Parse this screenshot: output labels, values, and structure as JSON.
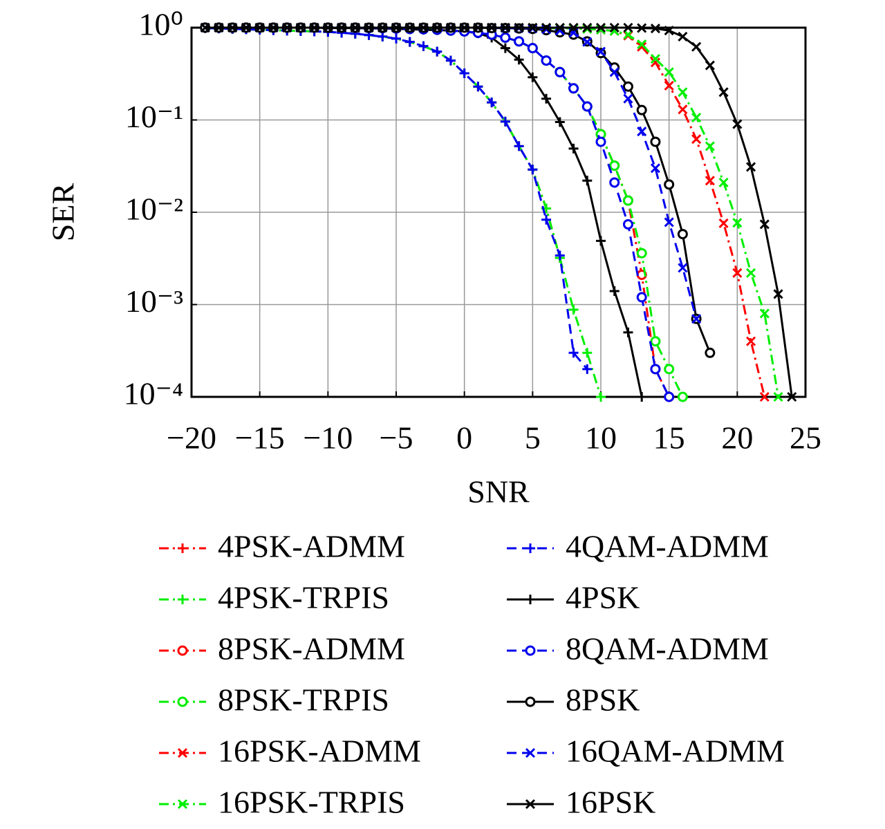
{
  "chart_data": {
    "type": "line",
    "xlabel": "SNR",
    "ylabel": "SER",
    "log_y": true,
    "grid": true,
    "legend_position": "below",
    "legend_columns": 2,
    "xlim": [
      -20,
      25
    ],
    "ylim": [
      0.0001,
      1
    ],
    "xticks": [
      {
        "value": -20,
        "label": "−20"
      },
      {
        "value": -15,
        "label": "−15"
      },
      {
        "value": -10,
        "label": "−10"
      },
      {
        "value": -5,
        "label": "−5"
      },
      0,
      5,
      10,
      15,
      20,
      25
    ],
    "yticks": [
      {
        "value": 1,
        "label": "10⁰"
      },
      {
        "value": 0.1,
        "label": "10⁻¹"
      },
      {
        "value": 0.01,
        "label": "10⁻²"
      },
      {
        "value": 0.001,
        "label": "10⁻³"
      },
      {
        "value": 0.0001,
        "label": "10⁻⁴"
      }
    ],
    "x": [
      -19,
      -18,
      -17,
      -16,
      -15,
      -14,
      -13,
      -12,
      -11,
      -10,
      -9,
      -8,
      -7,
      -6,
      -5,
      -4,
      -3,
      -2,
      -1,
      0,
      1,
      2,
      3,
      4,
      5,
      6,
      7,
      8,
      9,
      10,
      11,
      12,
      13,
      14,
      15,
      16,
      17,
      18,
      19,
      20,
      21,
      22,
      23,
      24
    ],
    "series": [
      {
        "name": "4PSK-ADMM",
        "color": "#ff0000",
        "linestyle": "dashdot",
        "marker": "+",
        "values": [
          0.99,
          0.98,
          0.97,
          0.96,
          0.95,
          0.94,
          0.93,
          0.92,
          0.91,
          0.9,
          0.88,
          0.86,
          0.83,
          0.8,
          0.76,
          0.7,
          0.63,
          0.55,
          0.44,
          0.32,
          0.23,
          0.155,
          0.096,
          0.052,
          0.029,
          0.011,
          0.0032,
          null,
          null,
          null,
          null,
          null,
          null,
          null,
          null,
          null,
          null,
          null,
          null,
          null,
          null,
          null,
          null,
          null
        ]
      },
      {
        "name": "4PSK-TRPIS",
        "color": "#00ee00",
        "linestyle": "dashdot",
        "marker": "+",
        "values": [
          0.99,
          0.98,
          0.97,
          0.96,
          0.95,
          0.94,
          0.93,
          0.92,
          0.91,
          0.9,
          0.88,
          0.86,
          0.83,
          0.8,
          0.76,
          0.7,
          0.63,
          0.55,
          0.44,
          0.32,
          0.23,
          0.155,
          0.096,
          0.052,
          0.029,
          0.011,
          0.0032,
          0.00088,
          0.0003,
          0.0001,
          null,
          null,
          null,
          null,
          null,
          null,
          null,
          null,
          null,
          null,
          null,
          null,
          null,
          null
        ]
      },
      {
        "name": "8PSK-ADMM",
        "color": "#ff0000",
        "linestyle": "dashdot",
        "marker": "o",
        "values": [
          1,
          1,
          1,
          1,
          1,
          1,
          1,
          1,
          1,
          1,
          1,
          1,
          0.99,
          0.99,
          0.98,
          0.97,
          0.96,
          0.95,
          0.93,
          0.91,
          0.88,
          0.84,
          0.78,
          0.71,
          0.6,
          0.44,
          0.33,
          0.22,
          0.14,
          0.07,
          0.032,
          0.0134,
          0.0021,
          0.0002,
          0.0001,
          null,
          null,
          null,
          null,
          null,
          null,
          null,
          null,
          null
        ]
      },
      {
        "name": "8PSK-TRPIS",
        "color": "#00ee00",
        "linestyle": "dashdot",
        "marker": "o",
        "values": [
          1,
          1,
          1,
          1,
          1,
          1,
          1,
          1,
          1,
          1,
          1,
          1,
          0.99,
          0.99,
          0.98,
          0.97,
          0.96,
          0.95,
          0.93,
          0.91,
          0.88,
          0.84,
          0.78,
          0.71,
          0.6,
          0.44,
          0.33,
          0.22,
          0.14,
          0.07,
          0.032,
          0.0134,
          0.0036,
          0.0004,
          0.0002,
          0.0001,
          null,
          null,
          null,
          null,
          null,
          null,
          null,
          null
        ]
      },
      {
        "name": "16PSK-ADMM",
        "color": "#ff0000",
        "linestyle": "dashdot",
        "marker": "x",
        "values": [
          1,
          1,
          1,
          1,
          1,
          1,
          1,
          1,
          1,
          1,
          1,
          1,
          1,
          1,
          1,
          1,
          1,
          1,
          1,
          1,
          1,
          1,
          1,
          1,
          1,
          0.99,
          0.99,
          0.98,
          0.97,
          0.95,
          0.92,
          0.82,
          0.62,
          0.42,
          0.235,
          0.13,
          0.062,
          0.022,
          0.0076,
          0.0022,
          0.0004,
          0.0001,
          null,
          null
        ]
      },
      {
        "name": "16PSK-TRPIS",
        "color": "#00ee00",
        "linestyle": "dashdot",
        "marker": "x",
        "values": [
          1,
          1,
          1,
          1,
          1,
          1,
          1,
          1,
          1,
          1,
          1,
          1,
          1,
          1,
          1,
          1,
          1,
          1,
          1,
          1,
          1,
          1,
          1,
          1,
          1,
          0.99,
          0.99,
          0.98,
          0.97,
          0.95,
          0.92,
          0.84,
          0.66,
          0.46,
          0.33,
          0.2,
          0.106,
          0.052,
          0.021,
          0.0077,
          0.0022,
          0.0008,
          0.0001,
          null
        ]
      },
      {
        "name": "4QAM-ADMM",
        "color": "#0000ee",
        "linestyle": "dashed",
        "marker": "+",
        "values": [
          0.99,
          0.98,
          0.97,
          0.96,
          0.95,
          0.94,
          0.93,
          0.92,
          0.91,
          0.9,
          0.88,
          0.86,
          0.83,
          0.8,
          0.76,
          0.7,
          0.63,
          0.55,
          0.44,
          0.32,
          0.23,
          0.155,
          0.096,
          0.052,
          0.029,
          0.0083,
          0.0034,
          0.0003,
          0.0002,
          null,
          null,
          null,
          null,
          null,
          null,
          null,
          null,
          null,
          null,
          null,
          null,
          null,
          null,
          null
        ]
      },
      {
        "name": "4PSK",
        "color": "#000000",
        "linestyle": "solid",
        "marker": "+",
        "values": [
          1,
          1,
          1,
          1,
          1,
          1,
          1,
          1,
          1,
          0.99,
          0.99,
          0.99,
          0.98,
          0.98,
          0.97,
          0.96,
          0.95,
          0.94,
          0.93,
          0.91,
          0.87,
          0.78,
          0.6,
          0.45,
          0.29,
          0.17,
          0.095,
          0.049,
          0.022,
          0.0049,
          0.0014,
          0.0005,
          0.0001,
          null,
          null,
          null,
          null,
          null,
          null,
          null,
          null,
          null,
          null,
          null
        ]
      },
      {
        "name": "8QAM-ADMM",
        "color": "#0000ee",
        "linestyle": "dashed",
        "marker": "o",
        "values": [
          1,
          1,
          1,
          1,
          1,
          1,
          1,
          1,
          1,
          1,
          1,
          1,
          0.99,
          0.99,
          0.98,
          0.97,
          0.96,
          0.95,
          0.93,
          0.91,
          0.88,
          0.84,
          0.78,
          0.71,
          0.6,
          0.44,
          0.33,
          0.22,
          0.14,
          0.058,
          0.021,
          0.0074,
          0.0012,
          0.0002,
          0.0001,
          null,
          null,
          null,
          null,
          null,
          null,
          null,
          null,
          null
        ]
      },
      {
        "name": "8PSK",
        "color": "#000000",
        "linestyle": "solid",
        "marker": "o",
        "values": [
          1,
          1,
          1,
          1,
          1,
          1,
          1,
          1,
          1,
          1,
          1,
          1,
          1,
          1,
          1,
          1,
          1,
          1,
          1,
          1,
          1,
          0.99,
          0.99,
          0.98,
          0.97,
          0.94,
          0.89,
          0.84,
          0.71,
          0.53,
          0.37,
          0.23,
          0.128,
          0.058,
          0.02,
          0.0058,
          0.0007,
          0.0003,
          null,
          null,
          null,
          null,
          null,
          null
        ]
      },
      {
        "name": "16QAM-ADMM",
        "color": "#0000ee",
        "linestyle": "dashed",
        "marker": "x",
        "values": [
          1,
          1,
          1,
          1,
          1,
          1,
          1,
          1,
          1,
          1,
          1,
          1,
          1,
          1,
          1,
          1,
          1,
          1,
          1,
          1,
          1,
          1,
          0.99,
          0.99,
          0.98,
          0.96,
          0.93,
          0.88,
          0.7,
          0.55,
          0.33,
          0.17,
          0.075,
          0.03,
          0.0078,
          0.0025,
          0.0007,
          null,
          null,
          null,
          null,
          null,
          null,
          null
        ]
      },
      {
        "name": "16PSK",
        "color": "#000000",
        "linestyle": "solid",
        "marker": "x",
        "values": [
          1,
          1,
          1,
          1,
          1,
          1,
          1,
          1,
          1,
          1,
          1,
          1,
          1,
          1,
          1,
          1,
          1,
          1,
          1,
          1,
          1,
          1,
          1,
          1,
          1,
          1,
          1,
          1,
          1,
          1,
          1,
          1,
          0.99,
          0.98,
          0.93,
          0.8,
          0.62,
          0.39,
          0.2,
          0.09,
          0.031,
          0.0074,
          0.0013,
          0.0001
        ]
      }
    ]
  }
}
